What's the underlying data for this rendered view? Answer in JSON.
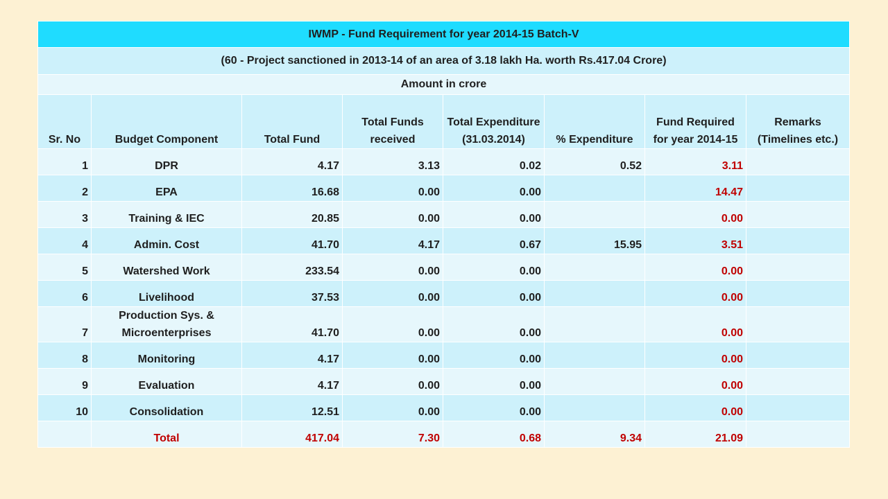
{
  "title": "IWMP - Fund Requirement for year 2014-15 Batch-V",
  "subtitle": "(60 - Project sanctioned in 2013-14 of an area of 3.18 lakh Ha. worth Rs.417.04 Crore)",
  "unit_note": "Amount in crore",
  "headers": {
    "sr_no": "Sr. No",
    "component": "Budget Component",
    "total_fund": "Total Fund",
    "received": "Total Funds received",
    "expenditure": "Total Expenditure (31.03.2014)",
    "pct_expenditure": "% Expenditure",
    "required": "Fund Required for year 2014-15",
    "remarks": "Remarks (Timelines etc.)"
  },
  "rows": [
    {
      "sr": "1",
      "component": "DPR",
      "total_fund": "4.17",
      "received": "3.13",
      "expenditure": "0.02",
      "pct": "0.52",
      "required": "3.11",
      "remarks": ""
    },
    {
      "sr": "2",
      "component": "EPA",
      "total_fund": "16.68",
      "received": "0.00",
      "expenditure": "0.00",
      "pct": "",
      "required": "14.47",
      "remarks": ""
    },
    {
      "sr": "3",
      "component": "Training & IEC",
      "total_fund": "20.85",
      "received": "0.00",
      "expenditure": "0.00",
      "pct": "",
      "required": "0.00",
      "remarks": ""
    },
    {
      "sr": "4",
      "component": "Admin. Cost",
      "total_fund": "41.70",
      "received": "4.17",
      "expenditure": "0.67",
      "pct": "15.95",
      "required": "3.51",
      "remarks": ""
    },
    {
      "sr": "5",
      "component": "Watershed Work",
      "total_fund": "233.54",
      "received": "0.00",
      "expenditure": "0.00",
      "pct": "",
      "required": "0.00",
      "remarks": ""
    },
    {
      "sr": "6",
      "component": "Livelihood",
      "total_fund": "37.53",
      "received": "0.00",
      "expenditure": "0.00",
      "pct": "",
      "required": "0.00",
      "remarks": ""
    },
    {
      "sr": "7",
      "component": "Production Sys. & Microenterprises",
      "total_fund": "41.70",
      "received": "0.00",
      "expenditure": "0.00",
      "pct": "",
      "required": "0.00",
      "remarks": ""
    },
    {
      "sr": "8",
      "component": "Monitoring",
      "total_fund": "4.17",
      "received": "0.00",
      "expenditure": "0.00",
      "pct": "",
      "required": "0.00",
      "remarks": ""
    },
    {
      "sr": "9",
      "component": "Evaluation",
      "total_fund": "4.17",
      "received": "0.00",
      "expenditure": "0.00",
      "pct": "",
      "required": "0.00",
      "remarks": ""
    },
    {
      "sr": "10",
      "component": "Consolidation",
      "total_fund": "12.51",
      "received": "0.00",
      "expenditure": "0.00",
      "pct": "",
      "required": "0.00",
      "remarks": ""
    }
  ],
  "total": {
    "label": "Total",
    "total_fund": "417.04",
    "received": "7.30",
    "expenditure": "0.68",
    "pct": "9.34",
    "required": "21.09"
  },
  "colors": {
    "page_background": "#fdf1d3",
    "title_band": "#1fdcff",
    "row_dark": "#cdf1fb",
    "row_light": "#e6f7fc",
    "red_values": "#c00000"
  }
}
